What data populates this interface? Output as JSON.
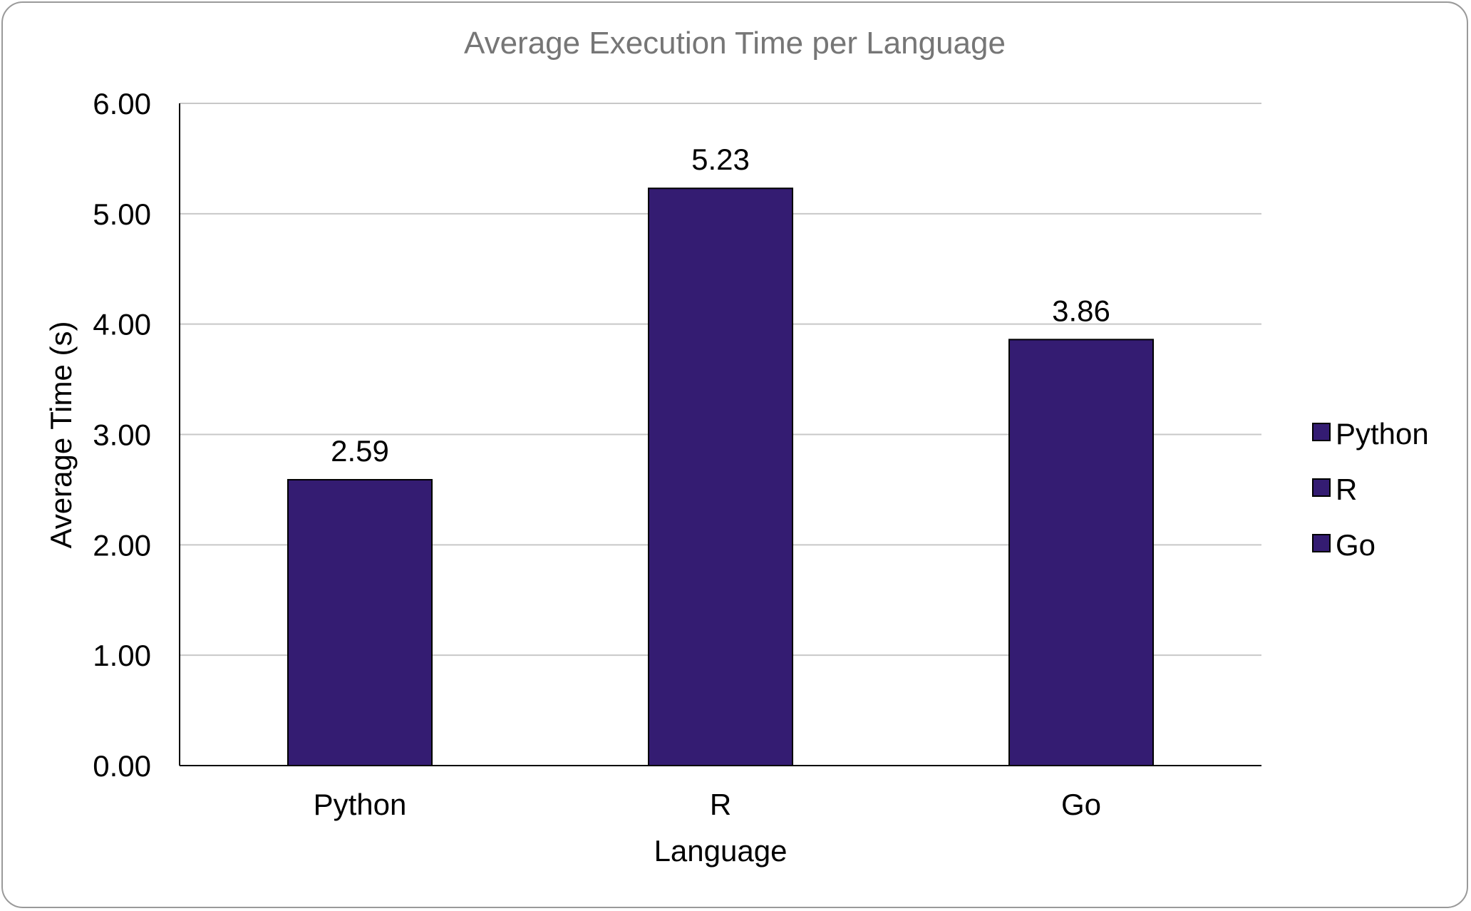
{
  "chart_data": {
    "type": "bar",
    "title": "Average Execution Time per Language",
    "xlabel": "Language",
    "ylabel": "Average Time (s)",
    "categories": [
      "Python",
      "R",
      "Go"
    ],
    "values": [
      2.59,
      5.23,
      3.86
    ],
    "value_labels": [
      "2.59",
      "5.23",
      "3.86"
    ],
    "ylim": [
      0,
      6
    ],
    "yticks": [
      "0.00",
      "1.00",
      "2.00",
      "3.00",
      "4.00",
      "5.00",
      "6.00"
    ],
    "grid": true,
    "legend": {
      "placement": "right",
      "entries": [
        "Python",
        "R",
        "Go"
      ]
    },
    "colors": {
      "bar": "#341c72",
      "bar_edge": "#000000",
      "grid": "#c8c8c8",
      "axis": "#000000",
      "title": "#767676",
      "text": "#000000"
    }
  }
}
